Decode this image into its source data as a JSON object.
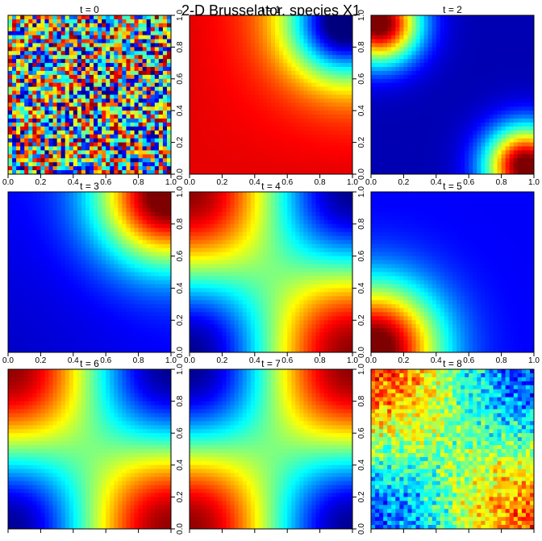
{
  "figure": {
    "title": "2-D Brusselator, species X1"
  },
  "chart_data": {
    "type": "heatmap",
    "title": "2-D Brusselator, species X1",
    "colormap": "jet",
    "colormap_stops": [
      "#00007F",
      "#0000FF",
      "#007FFF",
      "#00FFFF",
      "#7FFF7F",
      "#FFFF00",
      "#FF7F00",
      "#FF0000",
      "#7F0000"
    ],
    "grid_resolution": 40,
    "panel_grid": [
      3,
      3
    ],
    "xlim": [
      0,
      1
    ],
    "ylim": [
      0,
      1
    ],
    "x_ticks": [
      0.0,
      0.2,
      0.4,
      0.6,
      0.8,
      1.0
    ],
    "y_ticks": [
      0.0,
      0.2,
      0.4,
      0.6,
      0.8,
      1.0
    ],
    "x_tick_labels": [
      "0.0",
      "0.2",
      "0.4",
      "0.6",
      "0.8",
      "1.0"
    ],
    "y_tick_labels": [
      "0.0",
      "0.2",
      "0.4",
      "0.6",
      "0.8",
      "1.0"
    ],
    "panels": [
      {
        "title": "t = 0",
        "pattern": "random-noise"
      },
      {
        "title": "t = 1",
        "pattern": "high-left-and-bottom, low-top-right"
      },
      {
        "title": "t = 2",
        "pattern": "high-top-left-and-bottom-right, low-center"
      },
      {
        "title": "t = 3",
        "pattern": "high-top-right, low-bottom-left diagonal"
      },
      {
        "title": "t = 4",
        "pattern": "high-top-left-and-bottom-right, low-top-right-and-bottom-left"
      },
      {
        "title": "t = 5",
        "pattern": "high-bottom-left, low-top-right"
      },
      {
        "title": "t = 6",
        "pattern": "high-top-left-and-bottom-right, low-top-right-and-bottom-left"
      },
      {
        "title": "t = 7",
        "pattern": "high-top-right-and-bottom-left, low-top-left-and-bottom-right"
      },
      {
        "title": "t = 8",
        "pattern": "noisy, high-bottom-left-and-top-right"
      }
    ]
  }
}
